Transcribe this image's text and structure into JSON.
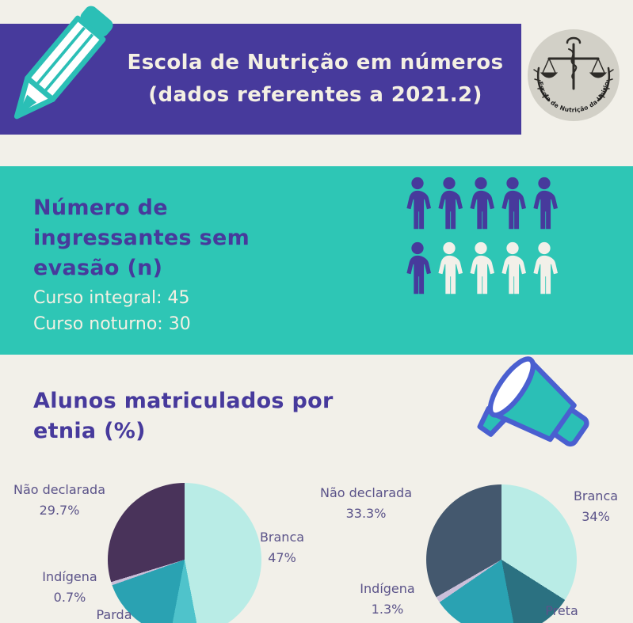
{
  "colors": {
    "purple": "#473a9c",
    "teal_band": "#2ec6b5",
    "cream_bg": "#f2f0e9",
    "cream_text": "#f4f0e3",
    "label_text": "#5b5389",
    "logo_bg": "#d2d0c7",
    "icon_teal": "#2bbfb6",
    "icon_outline_blue": "#4a5fd0"
  },
  "header": {
    "title_line1": "Escola de Nutrição em números",
    "title_line2": "(dados referentes a 2021.2)"
  },
  "logo": {
    "text": "Escola de Nutrição da Unirio"
  },
  "ingressantes": {
    "heading_lines": [
      "Número de",
      "ingressantes sem",
      "evasão (n)"
    ],
    "stats": [
      "Curso integral: 45",
      "Curso noturno: 30"
    ],
    "pictograph": {
      "rows": [
        [
          1,
          1,
          1,
          1,
          1
        ],
        [
          1,
          0,
          0,
          0,
          0
        ]
      ]
    }
  },
  "etnia": {
    "heading_line1": "Alunos matriculados por",
    "heading_line2": "etnia (%)"
  },
  "chart_data": [
    {
      "type": "pie",
      "title": "",
      "slices": [
        {
          "label": "Branca",
          "value": 47,
          "pct_label": "47%",
          "color": "#b9ece6"
        },
        {
          "label": "",
          "value": 6,
          "pct_label": "",
          "color": "#4fc3cb"
        },
        {
          "label": "Parda",
          "value": 16.6,
          "pct_label": "",
          "color": "#2aa2b2"
        },
        {
          "label": "Indígena",
          "value": 0.7,
          "pct_label": "0.7%",
          "color": "#cabfd9"
        },
        {
          "label": "Não declarada",
          "value": 29.7,
          "pct_label": "29.7%",
          "color": "#49335a"
        }
      ]
    },
    {
      "type": "pie",
      "title": "",
      "slices": [
        {
          "label": "Branca",
          "value": 34,
          "pct_label": "34%",
          "color": "#b9ece6"
        },
        {
          "label": "Preta",
          "value": 13,
          "pct_label": "",
          "color": "#2b7181"
        },
        {
          "label": "",
          "value": 18.4,
          "pct_label": "",
          "color": "#2aa2b2"
        },
        {
          "label": "Indígena",
          "value": 1.3,
          "pct_label": "1.3%",
          "color": "#cabfd9"
        },
        {
          "label": "Não declarada",
          "value": 33.3,
          "pct_label": "33.3%",
          "color": "#44586e"
        }
      ]
    }
  ]
}
